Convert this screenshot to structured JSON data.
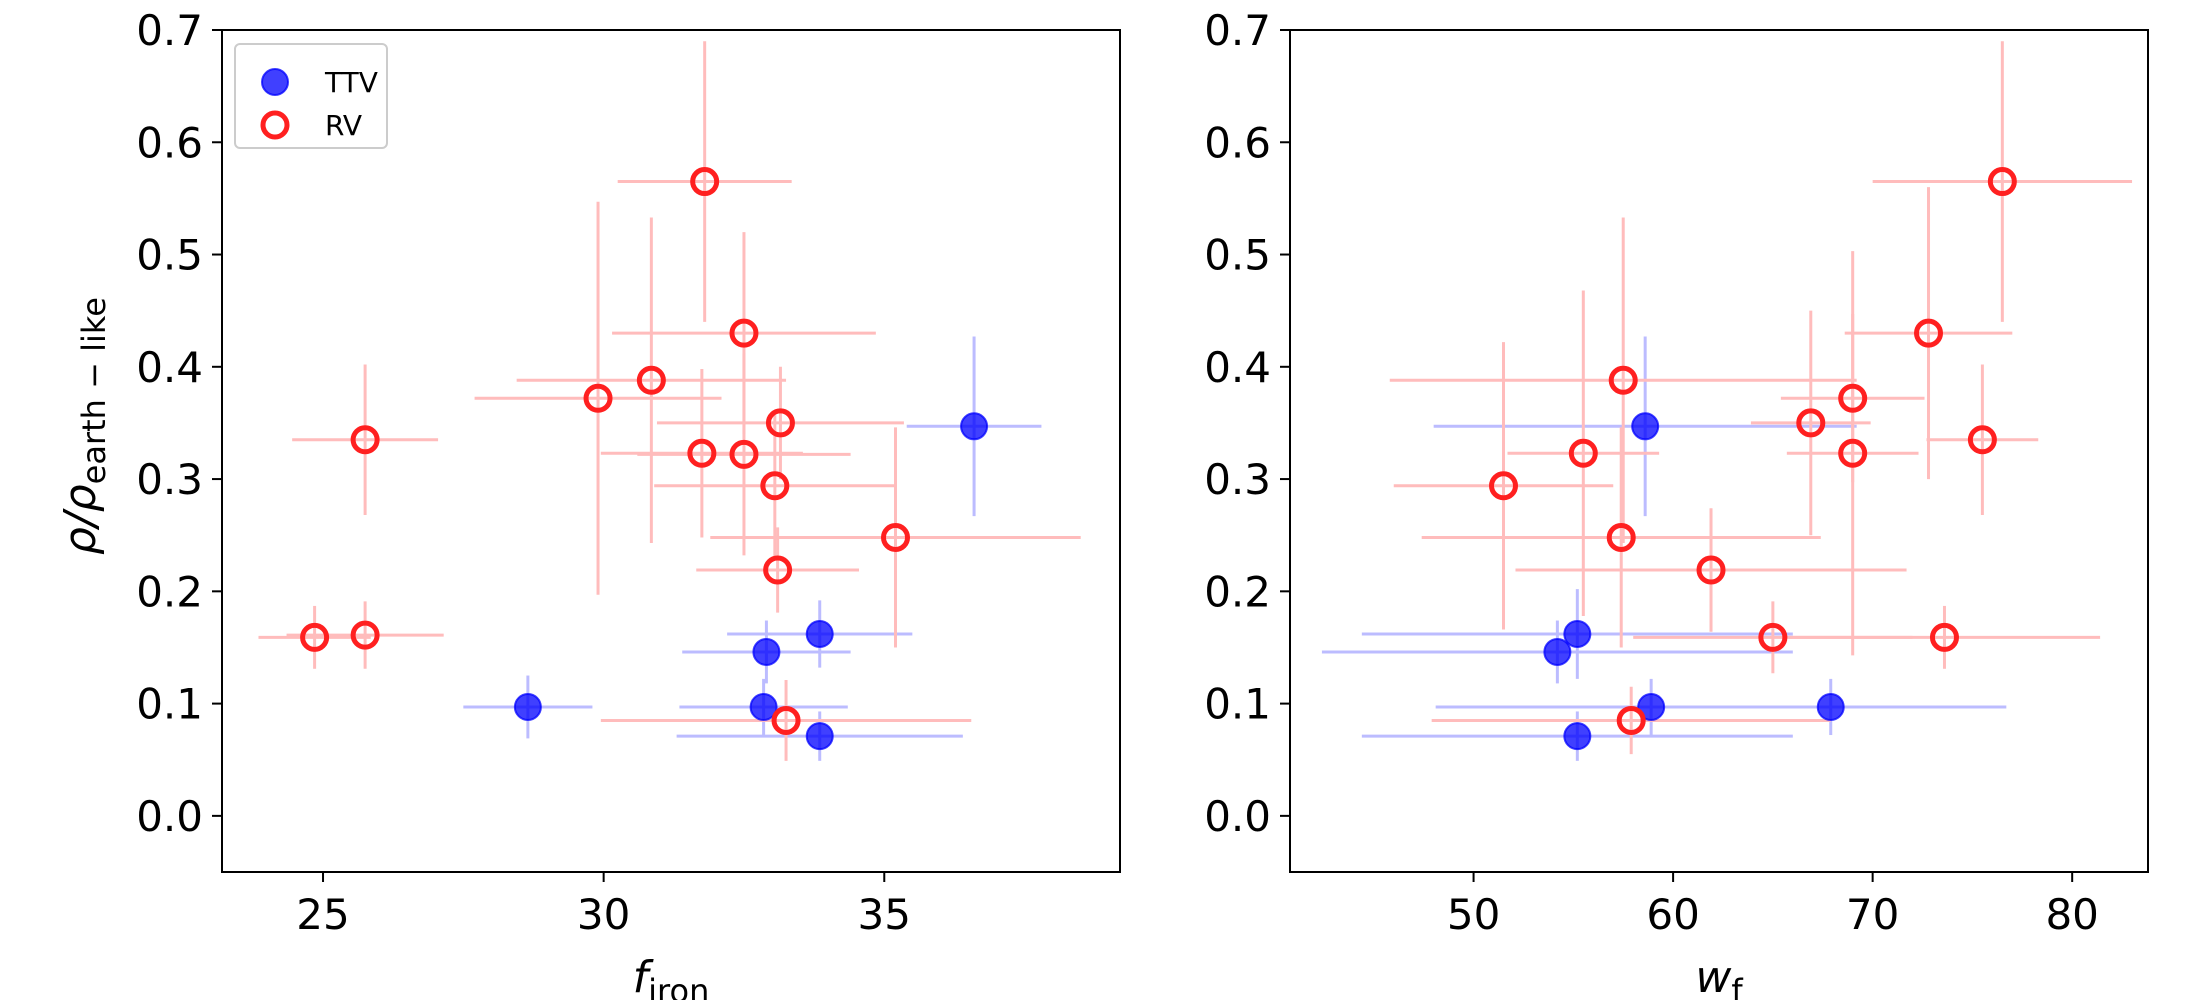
{
  "chart_data": [
    {
      "type": "scatter",
      "name": "left-panel",
      "xlabel": {
        "main": "f",
        "sub": "iron"
      },
      "ylabel": {
        "main": "ρ/ρ",
        "sub": "earth − like"
      },
      "xlim": [
        23.2,
        39.2
      ],
      "ylim": [
        -0.05,
        0.7
      ],
      "xticks": [
        25,
        30,
        35
      ],
      "yticks": [
        0.0,
        0.1,
        0.2,
        0.3,
        0.4,
        0.5,
        0.6,
        0.7
      ],
      "ytick_labels": [
        "0.0",
        "0.1",
        "0.2",
        "0.3",
        "0.4",
        "0.5",
        "0.6",
        "0.7"
      ],
      "series": [
        {
          "name": "TTV",
          "color": "#0000ff",
          "errcolor": "#bcbcff",
          "filled": true,
          "points": [
            {
              "x": 36.6,
              "y": 0.347,
              "xerr": 1.2,
              "yerr": 0.08
            },
            {
              "x": 33.85,
              "y": 0.162,
              "xerr": 1.65,
              "yerr": 0.03
            },
            {
              "x": 32.9,
              "y": 0.146,
              "xerr": 1.5,
              "yerr": 0.028
            },
            {
              "x": 28.65,
              "y": 0.097,
              "xerr": 1.15,
              "yerr": 0.028
            },
            {
              "x": 32.85,
              "y": 0.097,
              "xerr": 1.5,
              "yerr": 0.025
            },
            {
              "x": 33.85,
              "y": 0.071,
              "xerr": 2.55,
              "yerr": 0.022
            }
          ]
        },
        {
          "name": "RV",
          "color": "#ff2020",
          "errcolor": "#ffbcbc",
          "filled": false,
          "points": [
            {
              "x": 31.8,
              "y": 0.565,
              "xerr": 1.55,
              "yerr": 0.125
            },
            {
              "x": 32.5,
              "y": 0.43,
              "xerr": 2.35,
              "yerr": 0.09
            },
            {
              "x": 30.85,
              "y": 0.388,
              "xerr": 2.4,
              "yerr": 0.145
            },
            {
              "x": 29.9,
              "y": 0.372,
              "xerr": 2.2,
              "yerr": 0.175
            },
            {
              "x": 25.75,
              "y": 0.335,
              "xerr": 1.3,
              "yerr": 0.067
            },
            {
              "x": 33.15,
              "y": 0.35,
              "xerr": 2.2,
              "yerr": 0.05
            },
            {
              "x": 31.75,
              "y": 0.323,
              "xerr": 1.8,
              "yerr": 0.075
            },
            {
              "x": 32.5,
              "y": 0.322,
              "xerr": 1.9,
              "yerr": 0.09
            },
            {
              "x": 33.05,
              "y": 0.294,
              "xerr": 2.15,
              "yerr": 0.063
            },
            {
              "x": 35.2,
              "y": 0.248,
              "xerr": 3.3,
              "yerr": 0.098
            },
            {
              "x": 33.1,
              "y": 0.219,
              "xerr": 1.45,
              "yerr": 0.038
            },
            {
              "x": 24.85,
              "y": 0.159,
              "xerr": 1.0,
              "yerr": 0.028
            },
            {
              "x": 25.75,
              "y": 0.161,
              "xerr": 1.4,
              "yerr": 0.03
            },
            {
              "x": 33.25,
              "y": 0.085,
              "xerr": 3.3,
              "yerr": 0.036
            }
          ]
        }
      ],
      "legend": {
        "position": "top-left",
        "entries": [
          {
            "label": "TTV",
            "series": "TTV"
          },
          {
            "label": "RV",
            "series": "RV"
          }
        ]
      }
    },
    {
      "type": "scatter",
      "name": "right-panel",
      "xlabel": {
        "main": "w",
        "sub": "f"
      },
      "ylabel": null,
      "xlim": [
        40.8,
        83.8
      ],
      "ylim": [
        -0.05,
        0.7
      ],
      "xticks": [
        50,
        60,
        70,
        80
      ],
      "yticks": [
        0.0,
        0.1,
        0.2,
        0.3,
        0.4,
        0.5,
        0.6,
        0.7
      ],
      "ytick_labels": [
        "0.0",
        "0.1",
        "0.2",
        "0.3",
        "0.4",
        "0.5",
        "0.6",
        "0.7"
      ],
      "series": [
        {
          "name": "TTV",
          "color": "#0000ff",
          "errcolor": "#bcbcff",
          "filled": true,
          "points": [
            {
              "x": 58.6,
              "y": 0.347,
              "xerr": 10.6,
              "yerr": 0.08
            },
            {
              "x": 55.2,
              "y": 0.162,
              "xerr": 10.8,
              "yerr": 0.04
            },
            {
              "x": 54.2,
              "y": 0.146,
              "xerr": 11.8,
              "yerr": 0.028
            },
            {
              "x": 58.9,
              "y": 0.097,
              "xerr": 10.8,
              "yerr": 0.025
            },
            {
              "x": 67.9,
              "y": 0.097,
              "xerr": 8.8,
              "yerr": 0.025
            },
            {
              "x": 55.2,
              "y": 0.071,
              "xerr": 10.8,
              "yerr": 0.022
            }
          ]
        },
        {
          "name": "RV",
          "color": "#ff2020",
          "errcolor": "#ffbcbc",
          "filled": false,
          "points": [
            {
              "x": 76.5,
              "y": 0.565,
              "xerr": 6.5,
              "yerr": 0.125
            },
            {
              "x": 72.8,
              "y": 0.43,
              "xerr": 4.2,
              "yerr": 0.13
            },
            {
              "x": 57.5,
              "y": 0.388,
              "xerr": 11.7,
              "yerr": 0.145
            },
            {
              "x": 69.0,
              "y": 0.372,
              "xerr": 3.6,
              "yerr": 0.075
            },
            {
              "x": 75.5,
              "y": 0.335,
              "xerr": 2.8,
              "yerr": 0.067
            },
            {
              "x": 66.9,
              "y": 0.35,
              "xerr": 3.0,
              "yerr": 0.1
            },
            {
              "x": 55.5,
              "y": 0.323,
              "xerr": 3.8,
              "yerr": 0.145
            },
            {
              "x": 69.0,
              "y": 0.323,
              "xerr": 3.3,
              "yerr": 0.18
            },
            {
              "x": 51.5,
              "y": 0.294,
              "xerr": 5.5,
              "yerr": 0.128
            },
            {
              "x": 57.4,
              "y": 0.248,
              "xerr": 10.0,
              "yerr": 0.098
            },
            {
              "x": 61.9,
              "y": 0.219,
              "xerr": 9.8,
              "yerr": 0.055
            },
            {
              "x": 65.0,
              "y": 0.159,
              "xerr": 7.0,
              "yerr": 0.032
            },
            {
              "x": 73.6,
              "y": 0.159,
              "xerr": 7.8,
              "yerr": 0.028
            },
            {
              "x": 57.9,
              "y": 0.085,
              "xerr": 10.0,
              "yerr": 0.03
            }
          ]
        }
      ],
      "legend": null
    }
  ]
}
